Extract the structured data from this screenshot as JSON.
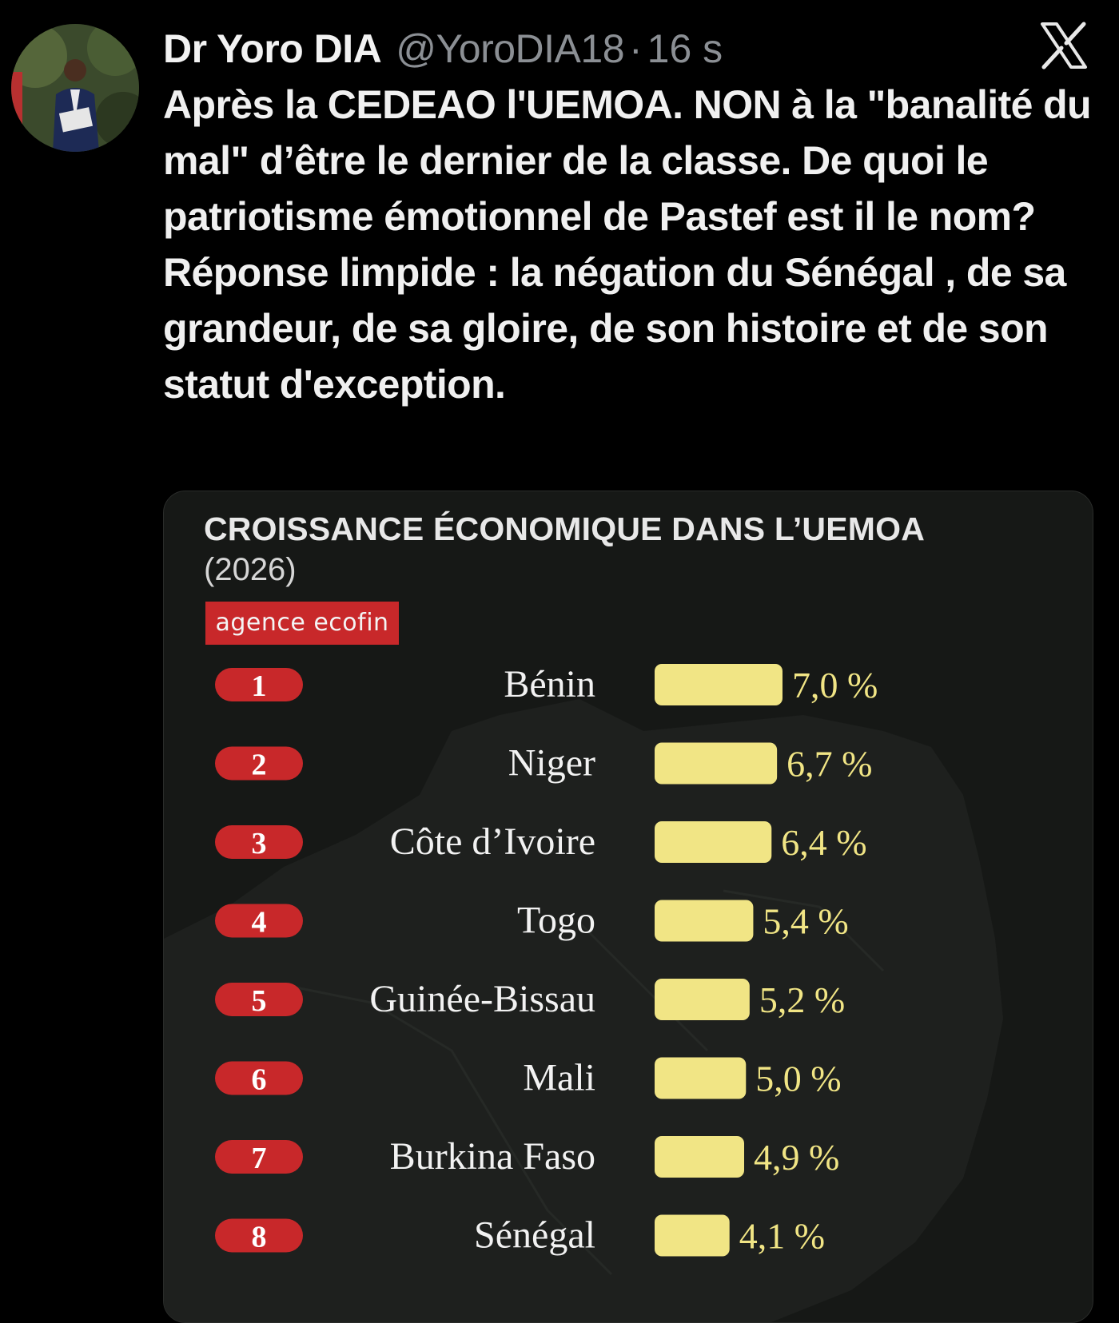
{
  "tweet": {
    "author_name": "Dr Yoro DIA",
    "handle": "@YoroDIA18",
    "separator": "·",
    "time": "16 s",
    "text": "Après la CEDEAO l'UEMOA. NON à la \"banalité du mal\" d’être le dernier de la classe. De quoi le patriotisme émotionnel de Pastef est il le nom? Réponse limpide : la négation du Sénégal , de sa grandeur, de sa gloire, de son histoire et de son statut d'exception."
  },
  "icons": {
    "platform_logo": "x-logo-icon",
    "avatar": "profile-photo"
  },
  "colors": {
    "background": "#000000",
    "badge": "#c8282a",
    "bar": "#f1e585",
    "value_text": "#f1e585"
  },
  "chart_data": {
    "type": "bar",
    "orientation": "horizontal",
    "title": "CROISSANCE ÉCONOMIQUE DANS L’UEMOA",
    "subtitle": "(2026)",
    "source": "agence ecofin",
    "ranks": [
      "1",
      "2",
      "3",
      "4",
      "5",
      "6",
      "7",
      "8"
    ],
    "categories": [
      "Bénin",
      "Niger",
      "Côte d’Ivoire",
      "Togo",
      "Guinée-Bissau",
      "Mali",
      "Burkina Faso",
      "Sénégal"
    ],
    "values": [
      7.0,
      6.7,
      6.4,
      5.4,
      5.2,
      5.0,
      4.9,
      4.1
    ],
    "value_labels": [
      "7,0 %",
      "6,7 %",
      "6,4 %",
      "5,4 %",
      "5,2 %",
      "5,0 %",
      "4,9 %",
      "4,1 %"
    ],
    "unit": "%",
    "grid": false,
    "legend": "none"
  }
}
